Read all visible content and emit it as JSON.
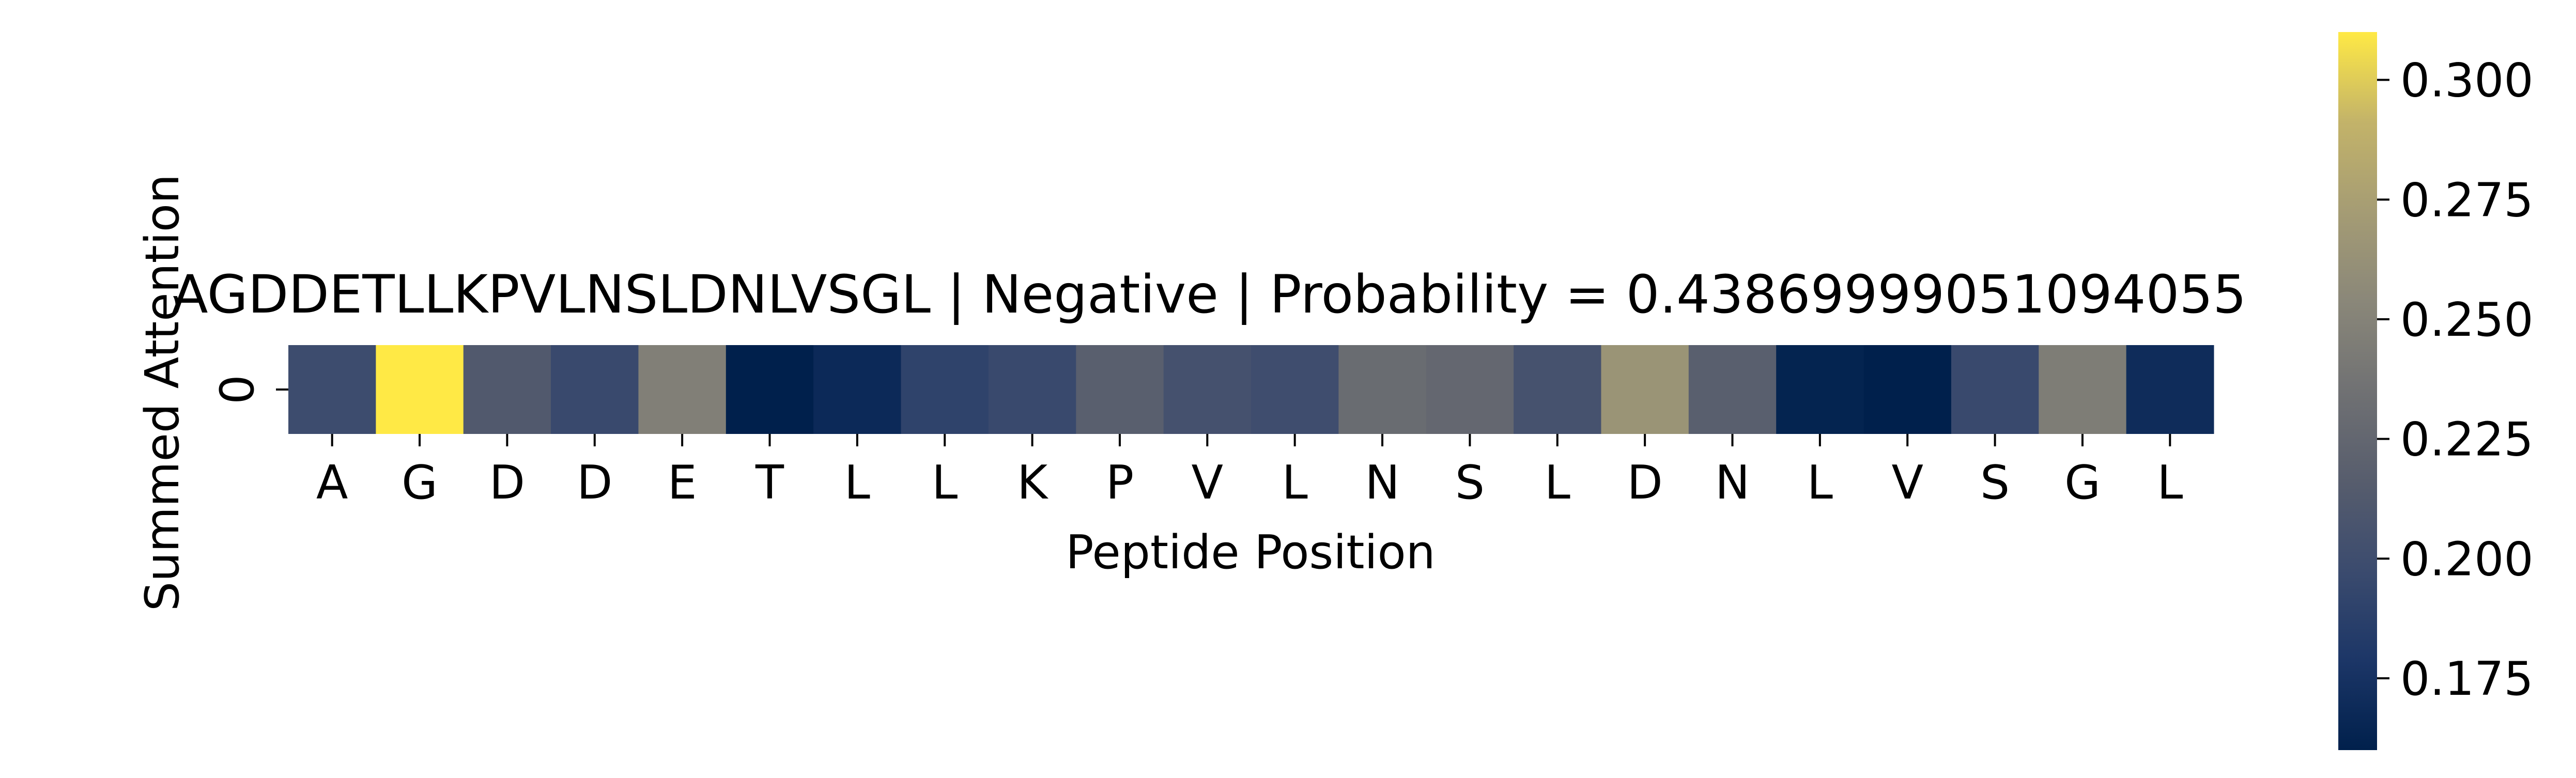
{
  "chart_data": {
    "type": "heatmap",
    "title": "AGDDETLLKPVLNSLDNLVSGL | Negative | Probability = 0.43869999051094055",
    "xlabel": "Peptide Position",
    "ylabel": "Summed Attention",
    "x_categories": [
      "A",
      "G",
      "D",
      "D",
      "E",
      "T",
      "L",
      "L",
      "K",
      "P",
      "V",
      "L",
      "N",
      "S",
      "L",
      "D",
      "N",
      "L",
      "V",
      "S",
      "G",
      "L"
    ],
    "y_categories": [
      "0"
    ],
    "values": [
      0.199,
      0.31,
      0.212,
      0.196,
      0.247,
      0.16,
      0.168,
      0.19,
      0.196,
      0.218,
      0.204,
      0.2,
      0.23,
      0.226,
      0.205,
      0.265,
      0.218,
      0.163,
      0.16,
      0.196,
      0.245,
      0.17
    ],
    "colorbar": {
      "colormap": "cividis",
      "range": [
        0.16,
        0.31
      ],
      "ticks": [
        0.175,
        0.2,
        0.225,
        0.25,
        0.275,
        0.3
      ],
      "tick_labels": [
        "0.175",
        "0.200",
        "0.225",
        "0.250",
        "0.275",
        "0.300"
      ]
    },
    "grid": false,
    "legend": "colorbar-right"
  }
}
